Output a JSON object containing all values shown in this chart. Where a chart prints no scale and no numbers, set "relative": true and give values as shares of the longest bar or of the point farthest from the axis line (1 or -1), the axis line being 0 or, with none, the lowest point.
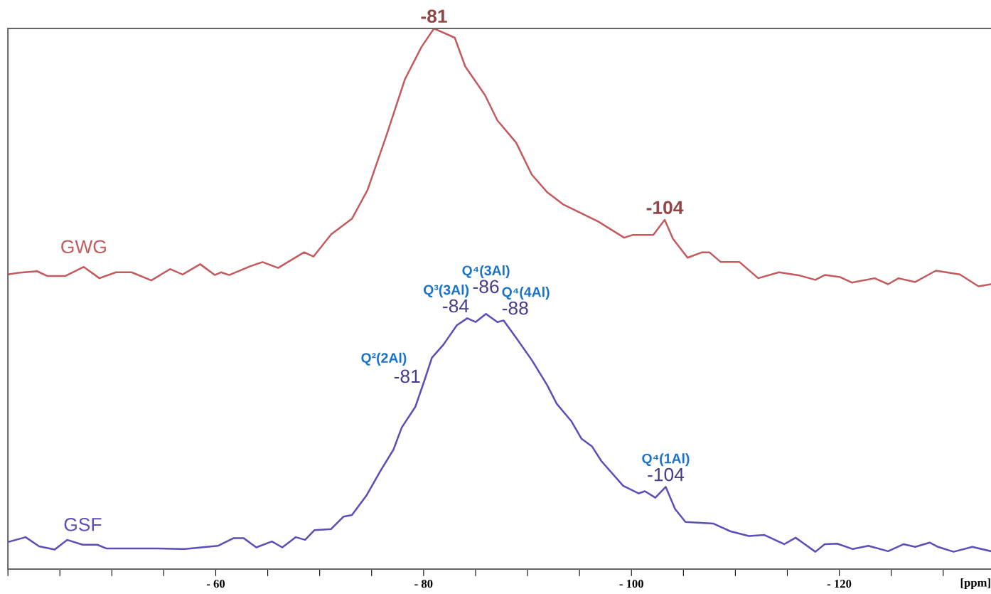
{
  "chart_data": {
    "type": "line",
    "relative": true,
    "xlabel": "[ppm]",
    "xlim": [
      -40,
      -134.6
    ],
    "xticks": [
      {
        "value": -40,
        "label": null
      },
      {
        "value": -45,
        "label": null
      },
      {
        "value": -50,
        "label": null
      },
      {
        "value": -55,
        "label": null
      },
      {
        "value": -60,
        "label": "- 60"
      },
      {
        "value": -65,
        "label": null
      },
      {
        "value": -70,
        "label": null
      },
      {
        "value": -75,
        "label": null
      },
      {
        "value": -80,
        "label": "- 80"
      },
      {
        "value": -85,
        "label": null
      },
      {
        "value": -90,
        "label": null
      },
      {
        "value": -95,
        "label": null
      },
      {
        "value": -100,
        "label": "- 100"
      },
      {
        "value": -105,
        "label": null
      },
      {
        "value": -110,
        "label": null
      },
      {
        "value": -115,
        "label": null
      },
      {
        "value": -120,
        "label": "- 120"
      },
      {
        "value": -125,
        "label": null
      },
      {
        "value": -130,
        "label": null
      }
    ],
    "tick_labels": "x",
    "grid": false,
    "legend": false,
    "marker": "none",
    "line_style": "solid",
    "series": [
      {
        "name": "GWG",
        "color": "#c25a5e",
        "x": [
          -40.0,
          -41.0,
          -42.8,
          -43.8,
          -45.5,
          -47.3,
          -48.8,
          -50.4,
          -51.9,
          -53.8,
          -55.6,
          -56.8,
          -58.5,
          -59.9,
          -60.5,
          -61.3,
          -63.3,
          -64.5,
          -66.0,
          -68.5,
          -69.4,
          -71.1,
          -73.1,
          -74.6,
          -76.4,
          -78.2,
          -79.8,
          -81.0,
          -83.0,
          -84.0,
          -85.9,
          -87.1,
          -88.9,
          -90.4,
          -91.9,
          -93.4,
          -96.8,
          -99.3,
          -100.1,
          -102.1,
          -103.2,
          -104.0,
          -105.4,
          -106.8,
          -107.5,
          -108.6,
          -110.4,
          -112.2,
          -114.2,
          -116.2,
          -117.7,
          -118.6,
          -120.1,
          -121.2,
          -123.4,
          -124.7,
          -125.7,
          -127.3,
          -129.3,
          -131.6,
          -133.4,
          -134.6
        ],
        "values": [
          0.545,
          0.548,
          0.551,
          0.542,
          0.542,
          0.559,
          0.538,
          0.549,
          0.549,
          0.534,
          0.555,
          0.545,
          0.564,
          0.544,
          0.549,
          0.544,
          0.56,
          0.568,
          0.557,
          0.586,
          0.578,
          0.619,
          0.648,
          0.701,
          0.801,
          0.906,
          0.966,
          1.0,
          0.983,
          0.93,
          0.877,
          0.83,
          0.789,
          0.73,
          0.697,
          0.675,
          0.643,
          0.613,
          0.618,
          0.618,
          0.646,
          0.611,
          0.576,
          0.586,
          0.586,
          0.568,
          0.568,
          0.538,
          0.549,
          0.543,
          0.535,
          0.544,
          0.54,
          0.53,
          0.538,
          0.527,
          0.538,
          0.531,
          0.552,
          0.545,
          0.523,
          0.527
        ]
      },
      {
        "name": "GSF",
        "color": "#5a4fb8",
        "x": [
          -40.0,
          -41.7,
          -43.0,
          -44.5,
          -45.7,
          -47.2,
          -48.6,
          -49.5,
          -51.4,
          -54.4,
          -57.0,
          -60.2,
          -61.7,
          -62.7,
          -63.9,
          -65.4,
          -66.4,
          -67.7,
          -68.6,
          -69.5,
          -71.1,
          -72.3,
          -73.1,
          -74.5,
          -75.8,
          -77.1,
          -77.9,
          -79.2,
          -80.1,
          -80.8,
          -81.9,
          -83.2,
          -84.2,
          -85.0,
          -86.0,
          -87.1,
          -87.7,
          -88.9,
          -90.4,
          -91.9,
          -92.8,
          -94.2,
          -95.2,
          -96.2,
          -97.1,
          -99.2,
          -100.7,
          -101.3,
          -102.3,
          -103.3,
          -104.2,
          -105.2,
          -107.9,
          -109.5,
          -111.3,
          -112.8,
          -114.7,
          -115.8,
          -117.7,
          -118.6,
          -119.8,
          -121.3,
          -122.8,
          -124.7,
          -126.2,
          -127.3,
          -128.7,
          -129.5,
          -131.0,
          -132.8,
          -134.6
        ],
        "values": [
          0.05,
          0.059,
          0.042,
          0.036,
          0.054,
          0.045,
          0.045,
          0.038,
          0.038,
          0.038,
          0.037,
          0.043,
          0.057,
          0.057,
          0.04,
          0.051,
          0.04,
          0.059,
          0.054,
          0.072,
          0.074,
          0.097,
          0.1,
          0.136,
          0.18,
          0.221,
          0.262,
          0.3,
          0.35,
          0.391,
          0.415,
          0.451,
          0.464,
          0.457,
          0.472,
          0.457,
          0.46,
          0.428,
          0.387,
          0.34,
          0.306,
          0.274,
          0.241,
          0.227,
          0.2,
          0.154,
          0.14,
          0.144,
          0.132,
          0.152,
          0.111,
          0.087,
          0.084,
          0.07,
          0.061,
          0.063,
          0.046,
          0.058,
          0.032,
          0.046,
          0.047,
          0.037,
          0.043,
          0.033,
          0.046,
          0.041,
          0.049,
          0.041,
          0.032,
          0.041,
          0.033
        ]
      }
    ],
    "annotations": [
      {
        "text": "-81",
        "x": -81.0,
        "y": 1.0
      },
      {
        "text": "-104",
        "x": -103.2,
        "y": 0.646
      },
      {
        "text": "-81",
        "x": -80.1,
        "y": 0.35
      },
      {
        "text": "Q²(2Al)",
        "x": -80.1,
        "y": 0.35
      },
      {
        "text": "-84",
        "x": -84.2,
        "y": 0.464
      },
      {
        "text": "Q³(3Al)",
        "x": -84.2,
        "y": 0.464
      },
      {
        "text": "-86",
        "x": -86.0,
        "y": 0.472
      },
      {
        "text": "Q⁴(3Al)",
        "x": -86.0,
        "y": 0.472
      },
      {
        "text": "-88",
        "x": -87.7,
        "y": 0.46
      },
      {
        "text": "Q⁴(4Al)",
        "x": -87.7,
        "y": 0.46
      },
      {
        "text": "-104",
        "x": -103.3,
        "y": 0.152
      },
      {
        "text": "Q⁴(1Al)",
        "x": -103.3,
        "y": 0.152
      }
    ]
  }
}
